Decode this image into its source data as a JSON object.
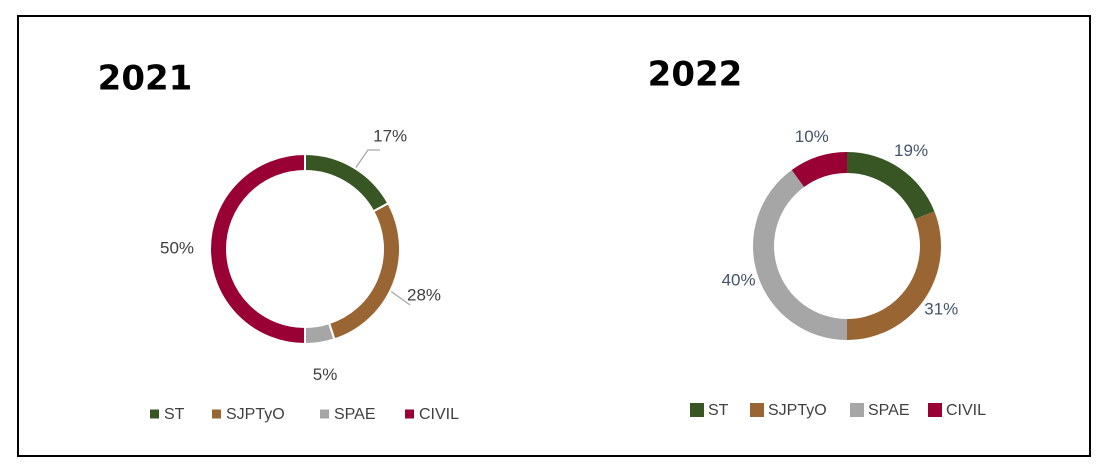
{
  "chart_data": [
    {
      "type": "pie",
      "title": "2021",
      "categories": [
        "ST",
        "SJPTyO",
        "SPAE",
        "CIVIL"
      ],
      "values": [
        17,
        28,
        5,
        50
      ],
      "value_labels": [
        "17%",
        "28%",
        "5%",
        "50%"
      ],
      "colors": [
        "#375623",
        "#996633",
        "#a6a6a6",
        "#990033"
      ],
      "legend": "bottom"
    },
    {
      "type": "pie",
      "title": "2022",
      "categories": [
        "ST",
        "SJPTyO",
        "SPAE",
        "CIVIL"
      ],
      "values": [
        19,
        31,
        40,
        10
      ],
      "value_labels": [
        "19%",
        "31%",
        "40%",
        "10%"
      ],
      "colors": [
        "#375623",
        "#996633",
        "#a6a6a6",
        "#990033"
      ],
      "legend": "bottom"
    }
  ]
}
